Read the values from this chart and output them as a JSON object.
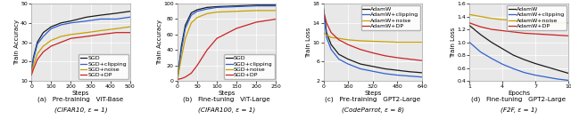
{
  "subplot_a": {
    "xlabel": "Steps",
    "ylabel": "Train Accuracy",
    "xlim": [
      0,
      500
    ],
    "ylim": [
      10,
      50
    ],
    "yticks": [
      10,
      20,
      30,
      40,
      50
    ],
    "xticks": [
      0,
      100,
      200,
      300,
      400,
      500
    ],
    "caption_line1": "(a)   Pre-training   ViT-Base",
    "caption_line2": "(CIFAR10, ε = 1)",
    "legend_loc": "lower right",
    "legend": [
      "SGD",
      "SGD+clipping",
      "SGD+noise",
      "SGD+DP"
    ],
    "colors": [
      "#1a1a1a",
      "#3060d0",
      "#c8a000",
      "#cc2020"
    ],
    "series": {
      "SGD": {
        "x": [
          0,
          10,
          30,
          60,
          100,
          150,
          200,
          280,
          350,
          430,
          500
        ],
        "y": [
          15,
          22,
          30,
          35,
          38,
          40,
          41,
          43,
          44,
          45,
          46
        ]
      },
      "SGD+clipping": {
        "x": [
          0,
          10,
          30,
          60,
          100,
          150,
          200,
          280,
          350,
          430,
          500
        ],
        "y": [
          15,
          21,
          29,
          33,
          37,
          39,
          40,
          41,
          42,
          42,
          43
        ]
      },
      "SGD+noise": {
        "x": [
          0,
          10,
          30,
          60,
          100,
          150,
          200,
          280,
          350,
          430,
          500
        ],
        "y": [
          14,
          18,
          24,
          28,
          31,
          33,
          34,
          35,
          36,
          37,
          38
        ]
      },
      "SGD+DP": {
        "x": [
          0,
          10,
          30,
          60,
          100,
          150,
          200,
          280,
          350,
          430,
          500
        ],
        "y": [
          13,
          16,
          21,
          25,
          28,
          30,
          32,
          33,
          34,
          35,
          35
        ]
      }
    }
  },
  "subplot_b": {
    "xlabel": "Steps",
    "ylabel": "Train Accuracy",
    "xlim": [
      0,
      250
    ],
    "ylim": [
      0,
      100
    ],
    "yticks": [
      0,
      20,
      40,
      60,
      80,
      100
    ],
    "xticks": [
      0,
      50,
      100,
      150,
      200,
      250
    ],
    "caption_line1": "(b)   Fine-tuning   ViT-Large",
    "caption_line2": "(CIFAR100, ε = 1)",
    "legend_loc": "lower right",
    "legend": [
      "SGD",
      "SGD+clipping",
      "SGD+noise",
      "SGD+DP"
    ],
    "colors": [
      "#1a1a1a",
      "#3060d0",
      "#c8a000",
      "#cc2020"
    ],
    "series": {
      "SGD": {
        "x": [
          0,
          10,
          20,
          35,
          50,
          75,
          100,
          150,
          200,
          250
        ],
        "y": [
          2,
          45,
          72,
          88,
          92,
          95,
          96,
          97,
          98,
          98
        ]
      },
      "SGD+clipping": {
        "x": [
          0,
          10,
          20,
          35,
          50,
          75,
          100,
          150,
          200,
          250
        ],
        "y": [
          2,
          40,
          68,
          85,
          90,
          93,
          95,
          96,
          97,
          97
        ]
      },
      "SGD+noise": {
        "x": [
          0,
          10,
          20,
          35,
          50,
          75,
          100,
          150,
          200,
          250
        ],
        "y": [
          2,
          30,
          55,
          75,
          82,
          87,
          89,
          90,
          91,
          91
        ]
      },
      "SGD+DP": {
        "x": [
          0,
          10,
          20,
          35,
          50,
          75,
          100,
          150,
          200,
          250
        ],
        "y": [
          2,
          3,
          5,
          10,
          20,
          40,
          55,
          68,
          76,
          80
        ]
      }
    }
  },
  "subplot_c": {
    "xlabel": "Steps",
    "ylabel": "Train Loss",
    "xlim": [
      0,
      640
    ],
    "ylim": [
      2,
      18
    ],
    "yticks": [
      2,
      6,
      10,
      14,
      18
    ],
    "xticks": [
      0,
      160,
      320,
      480,
      640
    ],
    "caption_line1": "(c)   Pre-training   GPT2-Large",
    "caption_line2": "(CodeParrot, ε = 8)",
    "legend_loc": "upper right",
    "legend": [
      "AdamW",
      "AdamW+clipping",
      "AdamW+noise",
      "AdamW+DP"
    ],
    "colors": [
      "#1a1a1a",
      "#3060d0",
      "#c8a000",
      "#cc2020"
    ],
    "series": {
      "AdamW": {
        "x": [
          0,
          20,
          50,
          100,
          160,
          240,
          320,
          400,
          480,
          560,
          640
        ],
        "y": [
          17,
          12,
          9.5,
          7.5,
          6.5,
          5.5,
          5.0,
          4.5,
          4.2,
          3.9,
          3.7
        ]
      },
      "AdamW+clipping": {
        "x": [
          0,
          20,
          50,
          100,
          160,
          240,
          320,
          400,
          480,
          560,
          640
        ],
        "y": [
          17,
          11,
          8.5,
          6.5,
          5.5,
          4.5,
          4.0,
          3.5,
          3.2,
          3.0,
          2.8
        ]
      },
      "AdamW+noise": {
        "x": [
          0,
          20,
          50,
          100,
          160,
          240,
          320,
          400,
          480,
          560,
          640
        ],
        "y": [
          12,
          11.5,
          11,
          10.8,
          10.5,
          10.3,
          10.2,
          10.1,
          10.0,
          10.0,
          10.0
        ]
      },
      "AdamW+DP": {
        "x": [
          0,
          20,
          50,
          100,
          160,
          240,
          320,
          400,
          480,
          560,
          640
        ],
        "y": [
          16.5,
          14,
          12,
          10.5,
          9.5,
          8.5,
          7.8,
          7.2,
          6.8,
          6.5,
          6.2
        ]
      }
    }
  },
  "subplot_d": {
    "xlabel": "Epochs",
    "ylabel": "Train Loss",
    "xlim": [
      1,
      10
    ],
    "ylim": [
      0.4,
      1.6
    ],
    "yticks": [
      0.4,
      0.6,
      0.8,
      1.0,
      1.2,
      1.4,
      1.6
    ],
    "xticks": [
      1,
      4,
      7,
      10
    ],
    "caption_line1": "(d)   Fine-tuning   GPT2-Large",
    "caption_line2": "(F2F, ε = 1)",
    "legend_loc": "upper right",
    "legend": [
      "AdamW",
      "AdamW+clipping",
      "AdamW+noise",
      "AdamW+DP"
    ],
    "colors": [
      "#1a1a1a",
      "#3060d0",
      "#c8a000",
      "#cc2020"
    ],
    "series": {
      "AdamW": {
        "x": [
          1,
          2,
          3,
          4,
          5,
          6,
          7,
          8,
          9,
          10
        ],
        "y": [
          1.26,
          1.12,
          1.0,
          0.9,
          0.8,
          0.73,
          0.67,
          0.62,
          0.57,
          0.52
        ]
      },
      "AdamW+clipping": {
        "x": [
          1,
          2,
          3,
          4,
          5,
          6,
          7,
          8,
          9,
          10
        ],
        "y": [
          1.0,
          0.85,
          0.75,
          0.66,
          0.59,
          0.53,
          0.49,
          0.46,
          0.43,
          0.41
        ]
      },
      "AdamW+noise": {
        "x": [
          1,
          2,
          3,
          4,
          5,
          6,
          7,
          8,
          9,
          10
        ],
        "y": [
          1.43,
          1.4,
          1.37,
          1.35,
          1.34,
          1.33,
          1.32,
          1.31,
          1.3,
          1.3
        ]
      },
      "AdamW+DP": {
        "x": [
          1,
          2,
          3,
          4,
          5,
          6,
          7,
          8,
          9,
          10
        ],
        "y": [
          1.3,
          1.24,
          1.2,
          1.18,
          1.16,
          1.14,
          1.13,
          1.12,
          1.11,
          1.1
        ]
      }
    }
  },
  "figure_bg": "#ffffff",
  "axes_bg": "#e8e8e8",
  "line_width": 0.9,
  "font_size": 5.0,
  "caption_font_size": 5.2,
  "tick_font_size": 4.5
}
